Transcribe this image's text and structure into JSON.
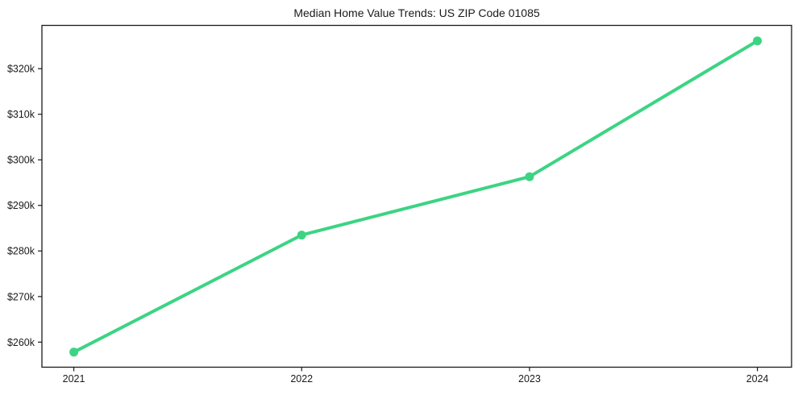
{
  "chart_data": {
    "type": "line",
    "title": "Median Home Value Trends: US ZIP Code 01085",
    "x": [
      2021,
      2022,
      2023,
      2024
    ],
    "x_tick_labels": [
      "2021",
      "2022",
      "2023",
      "2024"
    ],
    "series": [
      {
        "name": "Median home value",
        "values": [
          257800,
          283500,
          296300,
          326100
        ]
      }
    ],
    "y_tick_values": [
      260000,
      270000,
      280000,
      290000,
      300000,
      310000,
      320000
    ],
    "y_tick_labels": [
      "$260k",
      "$270k",
      "$280k",
      "$290k",
      "$300k",
      "$310k",
      "$320k"
    ],
    "xlim": [
      2020.86,
      2024.15
    ],
    "ylim": [
      254500,
      329500
    ],
    "grid": false,
    "legend": "none",
    "marker": "circle",
    "line_width": 4,
    "marker_radius": 5.5,
    "colors": {
      "line": "#3cd483",
      "marker": "#3cd483",
      "axis": "#1a1a1a",
      "text": "#1a1a1a",
      "background": "#ffffff"
    }
  }
}
